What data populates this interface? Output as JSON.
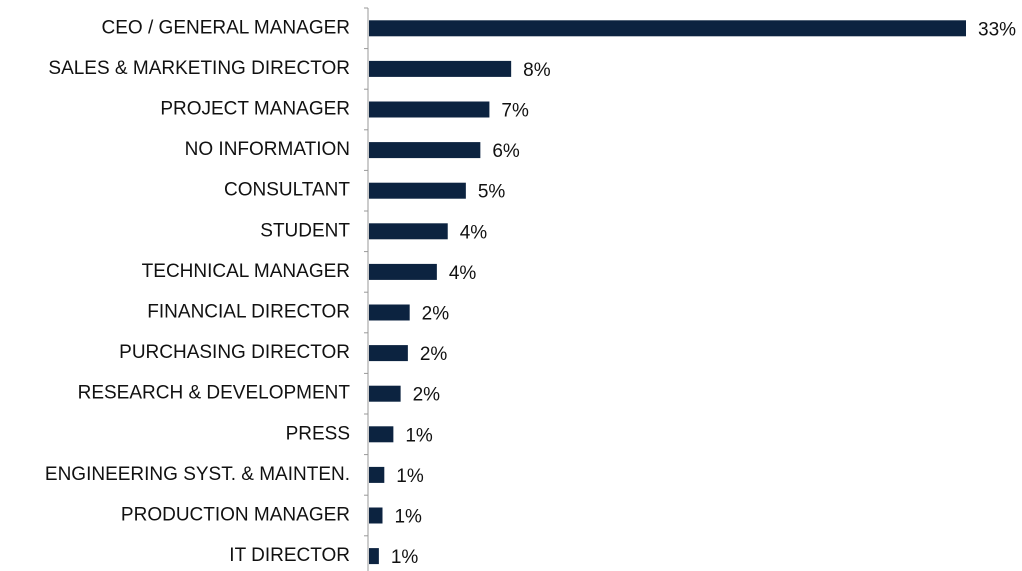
{
  "chart_data": {
    "type": "hbar",
    "categories": [
      "CEO / GENERAL MANAGER",
      "SALES & MARKETING DIRECTOR",
      "PROJECT MANAGER",
      "NO INFORMATION",
      "CONSULTANT",
      "STUDENT",
      "TECHNICAL MANAGER",
      "FINANCIAL DIRECTOR",
      "PURCHASING DIRECTOR",
      "RESEARCH & DEVELOPMENT",
      "PRESS",
      "ENGINEERING SYST. & MAINTEN.",
      "PRODUCTION MANAGER",
      "IT DIRECTOR"
    ],
    "values": [
      33,
      7.9,
      6.7,
      6.2,
      5.4,
      4.4,
      3.8,
      2.3,
      2.2,
      1.8,
      1.4,
      0.9,
      0.8,
      0.6
    ],
    "value_labels": [
      "33%",
      "8%",
      "7%",
      "6%",
      "5%",
      "4%",
      "4%",
      "2%",
      "2%",
      "2%",
      "1%",
      "1%",
      "1%",
      "1%"
    ],
    "color": "#0c2340"
  }
}
